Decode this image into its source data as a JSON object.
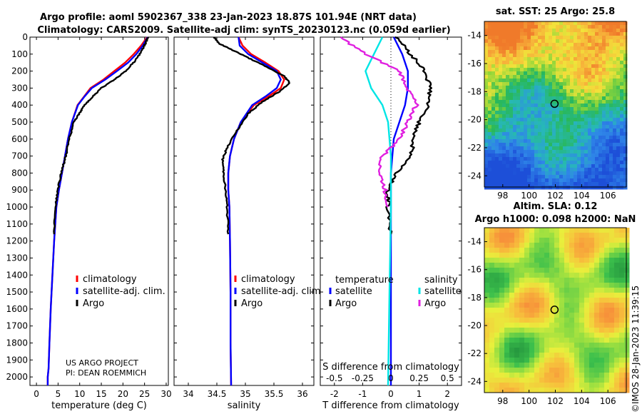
{
  "title": {
    "line1": "Argo profile: aoml 5902367_338 23-Jan-2023 18.87S 101.94E (NRT data)",
    "line2": "Climatology: CARS2009. Satellite-adj clim: synTS_20230123.nc (0.059d earlier)"
  },
  "credit": "US ARGO PROJECT",
  "pi": "PI: DEAN ROEMMICH",
  "imos_stamp": "©IMOS 28-Jan-2023 11:39:15",
  "colors": {
    "climatology": "#ff0000",
    "satellite": "#0000ff",
    "argo": "#000000",
    "sat_salinity": "#00e5e5",
    "argo_salinity": "#e020e0"
  },
  "chart_data": [
    {
      "type": "line",
      "panel": "temperature",
      "xlabel": "temperature (deg C)",
      "ylabel": "",
      "xlim": [
        -1.5,
        30.5
      ],
      "ylim": [
        2050,
        0
      ],
      "xticks": [
        0,
        5,
        10,
        15,
        20,
        25,
        30
      ],
      "yticks": [
        0,
        100,
        200,
        300,
        400,
        500,
        600,
        700,
        800,
        900,
        1000,
        1100,
        1200,
        1300,
        1400,
        1500,
        1600,
        1700,
        1800,
        1900,
        2000
      ],
      "legend": [
        "climatology",
        "satellite-adj. clim.",
        "Argo"
      ],
      "series": [
        {
          "name": "climatology",
          "color": "#ff0000",
          "x": [
            25.6,
            24.2,
            22.5,
            20.5,
            18.0,
            15.5,
            12.5,
            11.0,
            9.5,
            8.2,
            7.3,
            6.6,
            5.9,
            5.2,
            4.6,
            4.1,
            3.7,
            3.3,
            3.0,
            2.8,
            2.6,
            2.6
          ],
          "y": [
            0,
            50,
            100,
            150,
            200,
            250,
            300,
            350,
            400,
            500,
            600,
            700,
            800,
            900,
            1000,
            1200,
            1400,
            1600,
            1800,
            1950,
            2000,
            2050
          ]
        },
        {
          "name": "satellite-adj. clim.",
          "color": "#0000ff",
          "x": [
            25.7,
            24.6,
            23.1,
            21.2,
            18.6,
            15.9,
            12.8,
            11.1,
            9.6,
            8.2,
            7.3,
            6.6,
            5.9,
            5.2,
            4.6,
            4.1,
            3.7,
            3.3,
            3.0,
            2.8,
            2.6,
            2.6
          ],
          "y": [
            0,
            50,
            100,
            150,
            200,
            250,
            300,
            350,
            400,
            500,
            600,
            700,
            800,
            900,
            1000,
            1200,
            1400,
            1600,
            1800,
            1950,
            2000,
            2050
          ]
        },
        {
          "name": "Argo",
          "color": "#000000",
          "x": [
            25.8,
            25.3,
            24.4,
            22.8,
            20.6,
            18.0,
            15.0,
            13.0,
            11.2,
            9.9,
            8.6,
            7.6,
            6.8,
            5.7,
            4.9,
            4.4,
            4.1
          ],
          "y": [
            0,
            30,
            80,
            140,
            200,
            250,
            300,
            350,
            400,
            450,
            500,
            600,
            700,
            800,
            900,
            1000,
            1160
          ]
        }
      ]
    },
    {
      "type": "line",
      "panel": "salinity",
      "xlabel": "salinity",
      "ylabel": "",
      "xlim": [
        33.75,
        36.2
      ],
      "ylim": [
        2050,
        0
      ],
      "xticks": [
        34,
        34.5,
        35,
        35.5,
        36
      ],
      "legend": [
        "climatology",
        "satellite-adj. clim.",
        "Argo"
      ],
      "series": [
        {
          "name": "climatology",
          "color": "#ff0000",
          "x": [
            34.88,
            34.95,
            35.1,
            35.35,
            35.58,
            35.68,
            35.62,
            35.4,
            35.15,
            34.92,
            34.8,
            34.73,
            34.7,
            34.7,
            34.72,
            34.73,
            34.74,
            34.74,
            34.75
          ],
          "y": [
            0,
            50,
            100,
            150,
            200,
            250,
            300,
            350,
            400,
            500,
            600,
            700,
            800,
            900,
            1000,
            1200,
            1500,
            1800,
            2050
          ]
        },
        {
          "name": "satellite-adj. clim.",
          "color": "#0000ff",
          "x": [
            34.88,
            34.9,
            35.05,
            35.3,
            35.55,
            35.62,
            35.55,
            35.35,
            35.12,
            34.92,
            34.8,
            34.73,
            34.7,
            34.7,
            34.72,
            34.73,
            34.74,
            34.74,
            34.75
          ],
          "y": [
            0,
            50,
            100,
            150,
            200,
            250,
            300,
            350,
            400,
            500,
            600,
            700,
            800,
            900,
            1000,
            1200,
            1500,
            1800,
            2050
          ]
        },
        {
          "name": "Argo",
          "color": "#000000",
          "x": [
            34.45,
            34.55,
            34.8,
            35.1,
            35.4,
            35.68,
            35.78,
            35.6,
            35.3,
            35.05,
            34.85,
            34.68,
            34.6,
            34.62,
            34.65,
            34.68,
            34.7
          ],
          "y": [
            0,
            40,
            80,
            130,
            180,
            230,
            270,
            320,
            380,
            450,
            550,
            650,
            720,
            800,
            900,
            1000,
            1160
          ]
        }
      ]
    },
    {
      "type": "line",
      "panel": "differences",
      "xlabel": "T difference from climatology",
      "xlabel_top": "S difference from climatology",
      "xlim": [
        -2.5,
        2.5
      ],
      "ylim": [
        2050,
        0
      ],
      "xticks": [
        -2,
        -1,
        0,
        1,
        2
      ],
      "xtick_labels_top": [
        "-0.5",
        "-0.25",
        "0",
        "0.25",
        "0.5"
      ],
      "legend_temperature": [
        "temperature",
        "satellite",
        "Argo"
      ],
      "legend_salinity": [
        "salinity",
        "satellite",
        "Argo"
      ],
      "series": [
        {
          "name": "T satellite",
          "color": "#0000ff",
          "x": [
            0.1,
            0.4,
            0.6,
            0.6,
            0.5,
            0.3,
            0.1,
            0.05,
            0.0,
            0.0,
            0.0,
            0.0
          ],
          "y": [
            0,
            100,
            200,
            300,
            400,
            500,
            600,
            700,
            800,
            1000,
            1500,
            2050
          ]
        },
        {
          "name": "T Argo",
          "color": "#000000",
          "x": [
            0.2,
            0.7,
            1.2,
            1.4,
            1.3,
            1.0,
            0.8,
            0.7,
            0.2,
            -0.1,
            -0.1,
            0.0
          ],
          "y": [
            0,
            100,
            200,
            300,
            400,
            500,
            600,
            700,
            800,
            900,
            1000,
            1160
          ]
        },
        {
          "name": "S satellite",
          "color": "#00e5e5",
          "x": [
            -0.3,
            -0.6,
            -0.9,
            -0.7,
            -0.3,
            -0.1,
            -0.05,
            0.0,
            0.0,
            -0.05,
            -0.1
          ],
          "y": [
            0,
            100,
            200,
            300,
            400,
            500,
            600,
            700,
            1000,
            1500,
            2050
          ]
        },
        {
          "name": "S Argo",
          "color": "#e020e0",
          "x": [
            -1.8,
            -0.9,
            0.3,
            0.6,
            0.9,
            0.6,
            0.3,
            -0.3,
            -0.4,
            -0.2,
            -0.1
          ],
          "y": [
            0,
            100,
            200,
            300,
            400,
            500,
            600,
            700,
            800,
            900,
            1000
          ]
        }
      ]
    },
    {
      "type": "heatmap",
      "panel": "sat-sst-map",
      "title": "sat. SST: 25 Argo: 25.8",
      "xticks": [
        98,
        100,
        102,
        104,
        106
      ],
      "yticks": [
        -14,
        -16,
        -18,
        -20,
        -22,
        -24
      ],
      "xlim": [
        96.6,
        107.4
      ],
      "ylim": [
        -24.8,
        -13.0
      ],
      "marker": {
        "lon": 101.94,
        "lat": -18.87
      }
    },
    {
      "type": "heatmap",
      "panel": "altimetry-map",
      "title": "Altim. SLA: 0.12",
      "subtitle": "Argo h1000: 0.098 h2000: NaN",
      "xticks": [
        98,
        100,
        102,
        104,
        106
      ],
      "yticks": [
        -14,
        -16,
        -18,
        -20,
        -22,
        -24
      ],
      "xlim": [
        96.6,
        107.4
      ],
      "ylim": [
        -24.8,
        -13.0
      ],
      "marker": {
        "lon": 101.94,
        "lat": -18.87
      }
    }
  ]
}
